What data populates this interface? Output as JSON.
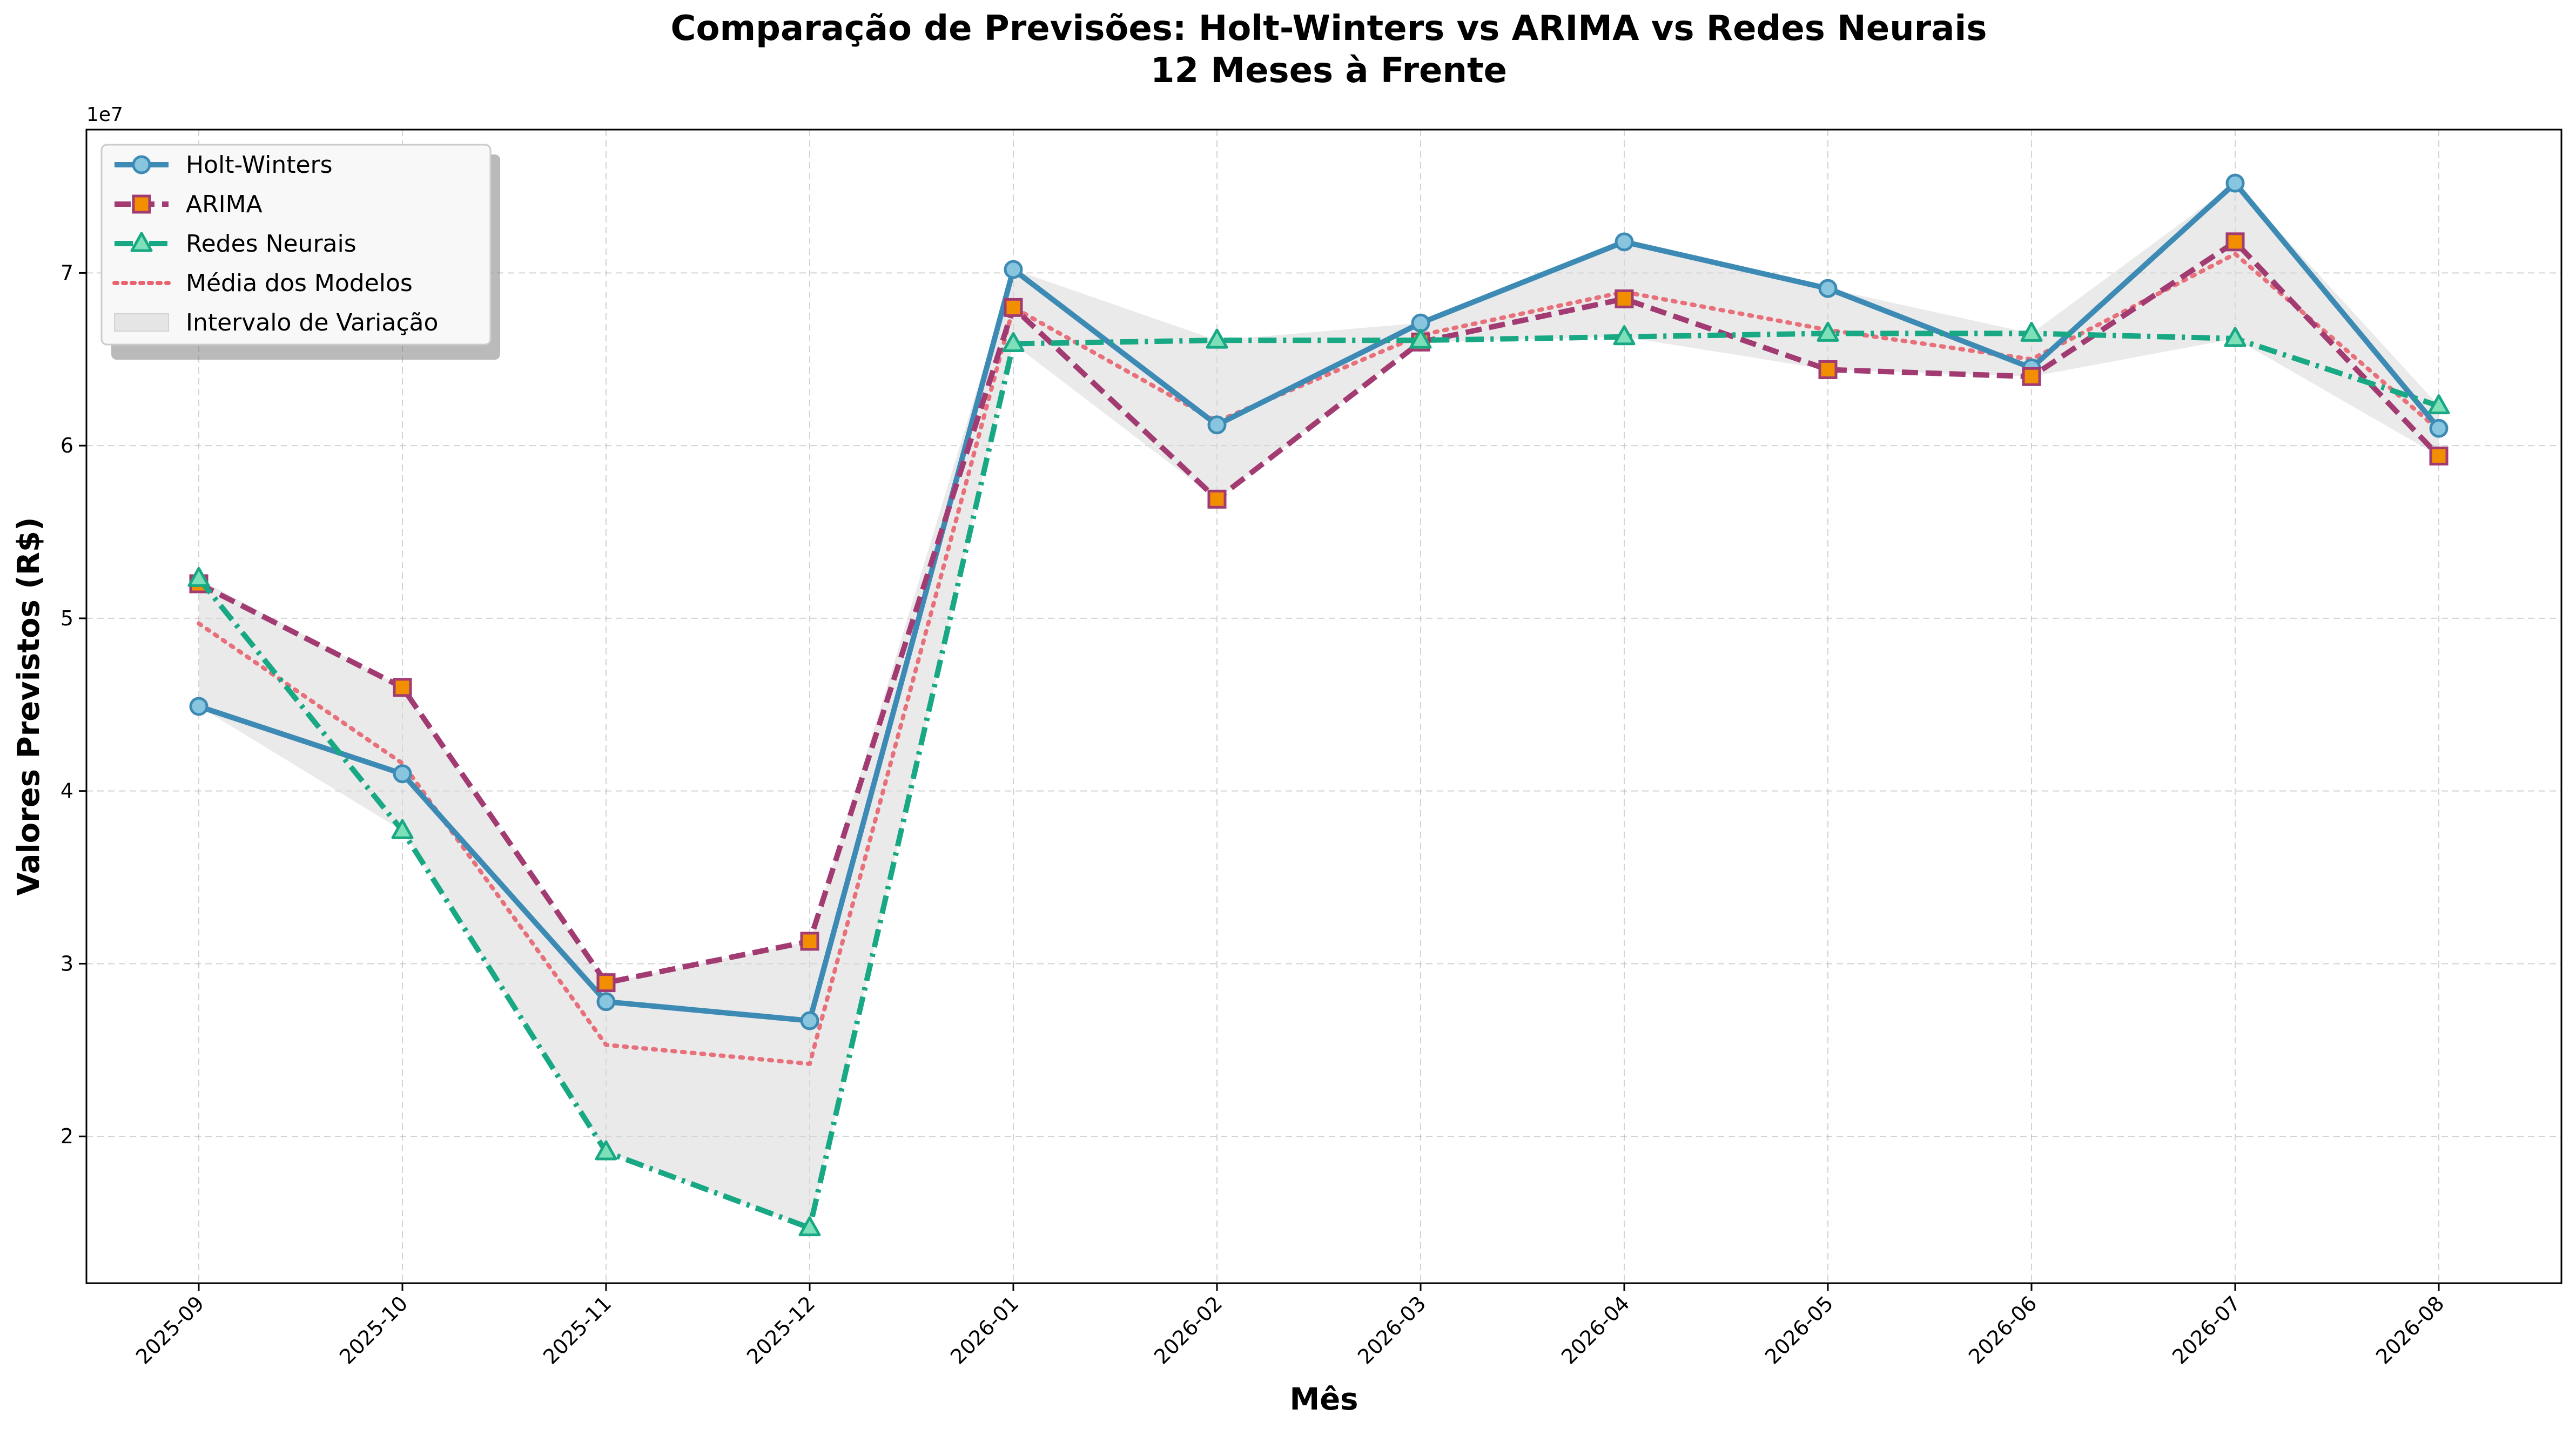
{
  "chart_data": {
    "type": "line",
    "title": "Comparação de Previsões: Holt-Winters vs ARIMA vs Redes Neurais",
    "subtitle": "12 Meses à Frente",
    "xlabel": "Mês",
    "ylabel": "Valores Previstos (R$)",
    "y_offset_label": "1e7",
    "categories": [
      "2025-09",
      "2025-10",
      "2025-11",
      "2025-12",
      "2026-01",
      "2026-02",
      "2026-03",
      "2026-04",
      "2026-05",
      "2026-06",
      "2026-07",
      "2026-08"
    ],
    "ylim": [
      11500000,
      78300000
    ],
    "yticks": [
      20000000,
      30000000,
      40000000,
      50000000,
      60000000,
      70000000
    ],
    "ytick_labels": [
      "2",
      "3",
      "4",
      "5",
      "6",
      "7"
    ],
    "grid": true,
    "legend_position": "top-left",
    "series": [
      {
        "name": "Holt-Winters",
        "style": "solid",
        "marker": "circle",
        "color": "#3d8bb5",
        "marker_fill": "#88c6e0",
        "values": [
          44900000,
          41000000,
          27800000,
          26700000,
          70200000,
          61200000,
          67100000,
          71800000,
          69100000,
          64500000,
          75200000,
          61000000
        ]
      },
      {
        "name": "ARIMA",
        "style": "dashed",
        "marker": "square",
        "color": "#a23b72",
        "marker_fill": "#f18f01",
        "values": [
          52000000,
          46000000,
          28900000,
          31300000,
          68000000,
          56900000,
          66000000,
          68500000,
          64400000,
          64000000,
          71800000,
          59400000
        ]
      },
      {
        "name": "Redes Neurais",
        "style": "dashdot",
        "marker": "triangle",
        "color": "#18a884",
        "marker_fill": "#7de0b8",
        "values": [
          52300000,
          37700000,
          19100000,
          14700000,
          65900000,
          66100000,
          66100000,
          66300000,
          66500000,
          66500000,
          66200000,
          62300000
        ]
      },
      {
        "name": "Média dos Modelos",
        "style": "dotted",
        "marker": "none",
        "color": "#e8636f",
        "values": [
          49700000,
          41600000,
          25300000,
          24200000,
          68000000,
          61400000,
          66400000,
          68900000,
          66700000,
          65000000,
          71100000,
          60900000
        ]
      }
    ],
    "band": {
      "name": "Intervalo de Variação",
      "color": "#d9d9d9"
    }
  }
}
